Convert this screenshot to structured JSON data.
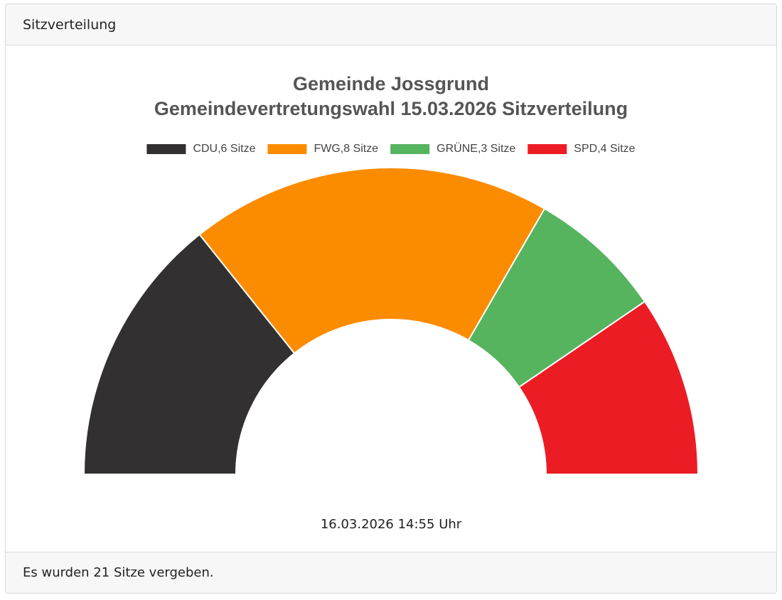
{
  "header": {
    "title": "Sitzverteilung"
  },
  "chart_data": {
    "type": "semi_donut",
    "title": [
      "Gemeinde Jossgrund",
      "Gemeindevertretungswahl 15.03.2026 Sitzverteilung"
    ],
    "values": [
      6,
      8,
      3,
      4
    ],
    "value_labels": [
      "CDU,6 Sitze",
      "FWG,8 Sitze",
      "GRÜNE,3 Sitze",
      "SPD,4 Sitze"
    ],
    "colors": [
      "#323031",
      "#fb8c00",
      "#56b35e",
      "#ec1c24"
    ]
  },
  "timestamp": "16.03.2026 14:55 Uhr",
  "footer": {
    "text": "Es wurden 21 Sitze vergeben."
  }
}
